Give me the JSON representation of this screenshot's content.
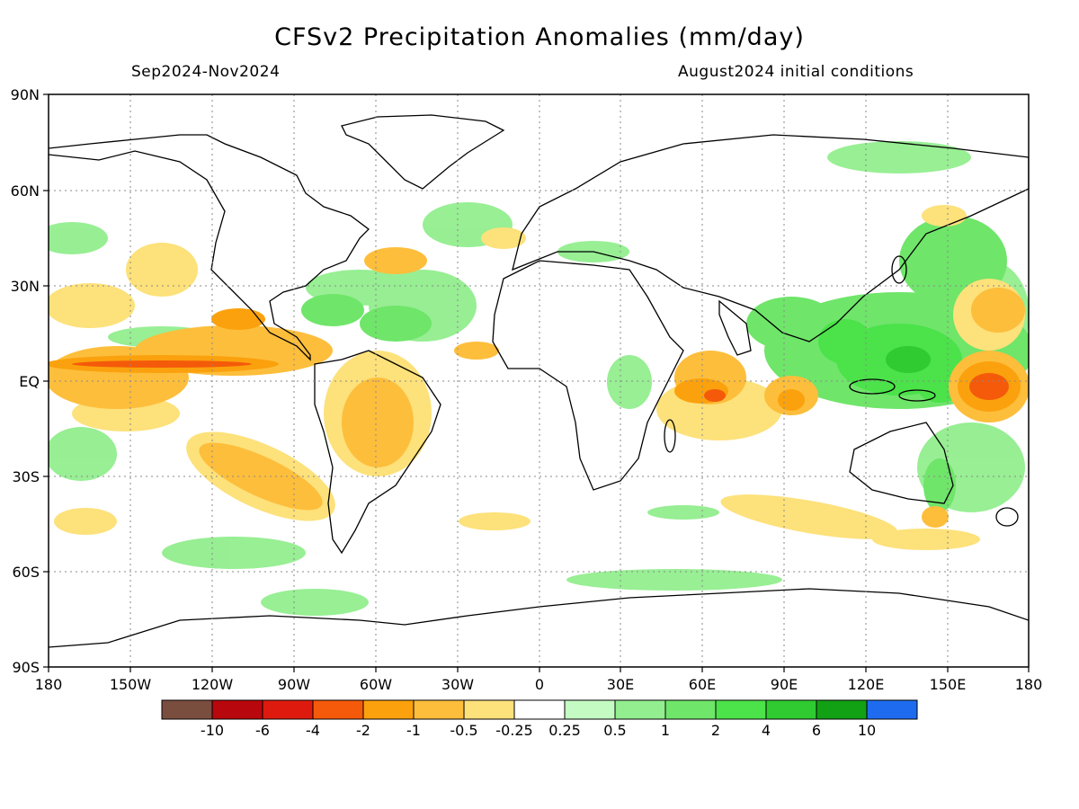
{
  "header": {
    "title": "CFSv2 Precipitation Anomalies (mm/day)",
    "period": "Sep2024-Nov2024",
    "init": "August2024 initial conditions"
  },
  "axes": {
    "lat_ticks": [
      "90N",
      "60N",
      "30N",
      "EQ",
      "30S",
      "60S",
      "90S"
    ],
    "lon_ticks": [
      "180",
      "150W",
      "120W",
      "90W",
      "60W",
      "30W",
      "0",
      "30E",
      "60E",
      "90E",
      "120E",
      "150E",
      "180"
    ],
    "grid": "dotted"
  },
  "legend": {
    "labels": [
      "-10",
      "-6",
      "-4",
      "-2",
      "-1",
      "-0.5",
      "-0.25",
      "0.25",
      "0.5",
      "1",
      "2",
      "4",
      "6",
      "10"
    ],
    "colors": [
      "#7a4e3f",
      "#b8070d",
      "#de1a0f",
      "#f45a0a",
      "#fba10d",
      "#fdbe3c",
      "#fde17a",
      "#ffffff",
      "#c4fbc2",
      "#92ee8e",
      "#6fe56a",
      "#4be24a",
      "#2fcb31",
      "#12a015",
      "#1f6bf0"
    ]
  },
  "chart_data": {
    "type": "heatmap",
    "title": "CFSv2 Precipitation Anomalies (mm/day)",
    "subtitle": "Sep2024-Nov2024",
    "annotation": "August2024 initial conditions",
    "x_range": [
      -180,
      180
    ],
    "y_range": [
      -90,
      90
    ],
    "levels": [
      -10,
      -6,
      -4,
      -2,
      -1,
      -0.5,
      -0.25,
      0.25,
      0.5,
      1,
      2,
      4,
      6,
      10
    ],
    "colorbar": "horizontal-bottom"
  }
}
